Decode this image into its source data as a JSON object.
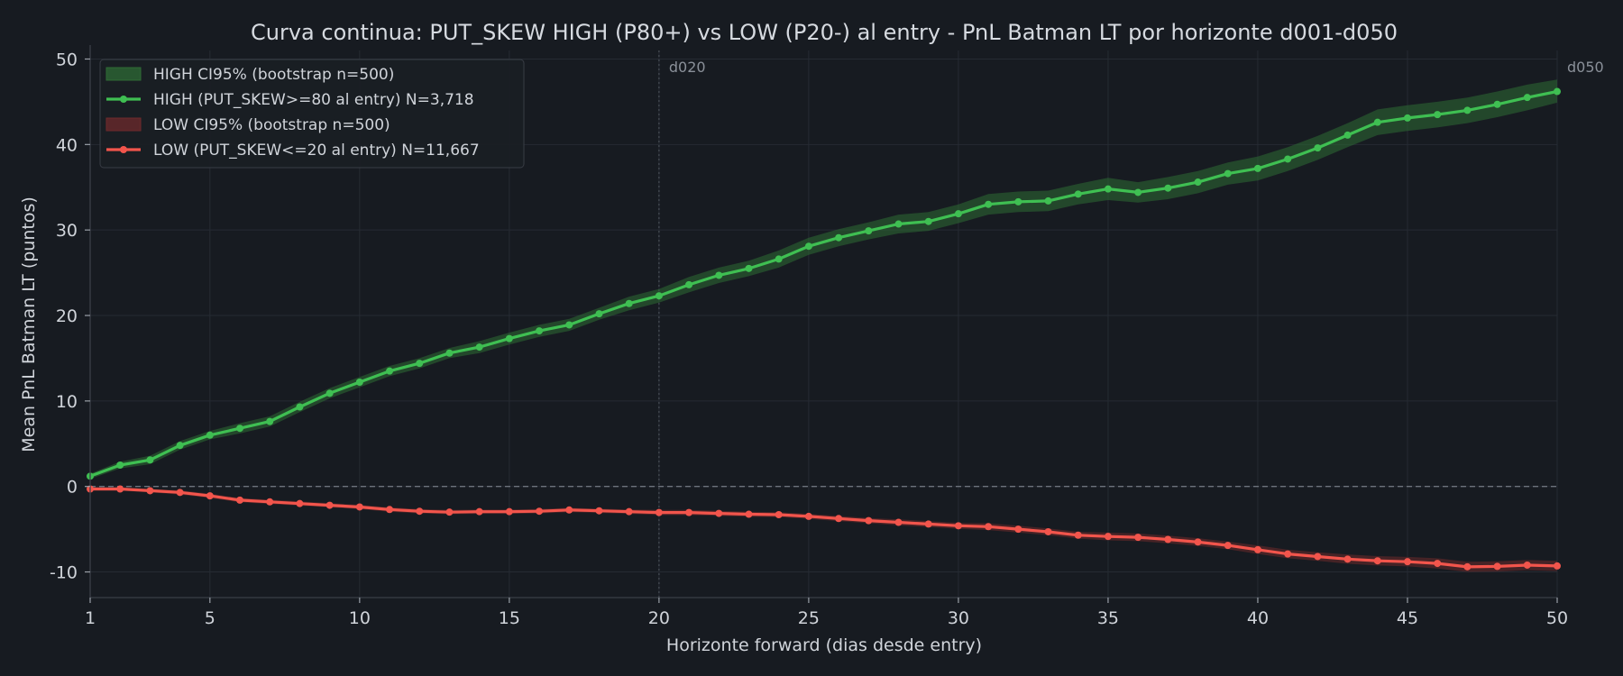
{
  "chart_data": {
    "type": "line",
    "title": "Curva continua: PUT_SKEW HIGH (P80+) vs LOW (P20-) al entry  -  PnL Batman LT por horizonte d001-d050",
    "xlabel": "Horizonte forward (dias desde entry)",
    "ylabel": "Mean PnL Batman LT (puntos)",
    "xlim": [
      1,
      50
    ],
    "ylim": [
      -13,
      51
    ],
    "x_ticks": [
      1,
      5,
      10,
      15,
      20,
      25,
      30,
      35,
      40,
      45,
      50
    ],
    "x_tick_labels": [
      "1",
      "5",
      "10",
      "15",
      "20",
      "25",
      "30",
      "35",
      "40",
      "45",
      "50"
    ],
    "y_ticks": [
      -10,
      0,
      10,
      20,
      30,
      40,
      50
    ],
    "y_tick_labels": [
      "-10",
      "0",
      "10",
      "20",
      "30",
      "40",
      "50"
    ],
    "grid": true,
    "legend_position": "top-left",
    "reference_lines": [
      {
        "axis": "y",
        "value": 0,
        "style": "dashed"
      },
      {
        "axis": "x",
        "value": 20,
        "label": "d020",
        "style": "dotted"
      },
      {
        "axis": "x",
        "value": 50,
        "label": "d050",
        "style": "none"
      }
    ],
    "x": [
      1,
      2,
      3,
      4,
      5,
      6,
      7,
      8,
      9,
      10,
      11,
      12,
      13,
      14,
      15,
      16,
      17,
      18,
      19,
      20,
      21,
      22,
      23,
      24,
      25,
      26,
      27,
      28,
      29,
      30,
      31,
      32,
      33,
      34,
      35,
      36,
      37,
      38,
      39,
      40,
      41,
      42,
      43,
      44,
      45,
      46,
      47,
      48,
      49,
      50
    ],
    "series": [
      {
        "name": "HIGH (PUT_SKEW>=80 al entry)  N=3,718",
        "color": "#3fbf52",
        "ci_label": "HIGH CI95% (bootstrap n=500)",
        "ci_color": "#2e6b35",
        "values": [
          1.2,
          2.5,
          3.1,
          4.8,
          6.0,
          6.8,
          7.6,
          9.3,
          10.9,
          12.2,
          13.5,
          14.4,
          15.6,
          16.3,
          17.3,
          18.2,
          18.9,
          20.2,
          21.4,
          22.3,
          23.6,
          24.7,
          25.5,
          26.6,
          28.1,
          29.1,
          29.9,
          30.7,
          31.0,
          31.9,
          33.0,
          33.3,
          33.4,
          34.2,
          34.8,
          34.4,
          34.9,
          35.6,
          36.6,
          37.2,
          38.3,
          39.6,
          41.1,
          42.6,
          43.1,
          43.5,
          44.0,
          44.7,
          45.5,
          46.2
        ],
        "ci_low": [
          0.9,
          2.1,
          2.6,
          4.3,
          5.5,
          6.2,
          7.0,
          8.7,
          10.3,
          11.6,
          12.9,
          13.8,
          15.0,
          15.6,
          16.6,
          17.5,
          18.2,
          19.5,
          20.6,
          21.5,
          22.7,
          23.8,
          24.6,
          25.6,
          27.1,
          28.1,
          28.9,
          29.6,
          29.9,
          30.8,
          31.8,
          32.1,
          32.2,
          33.0,
          33.5,
          33.2,
          33.6,
          34.3,
          35.3,
          35.8,
          36.9,
          38.2,
          39.7,
          41.1,
          41.6,
          42.0,
          42.5,
          43.2,
          44.0,
          44.9
        ],
        "ci_high": [
          1.5,
          2.9,
          3.6,
          5.3,
          6.5,
          7.4,
          8.2,
          9.9,
          11.5,
          12.8,
          14.1,
          15.0,
          16.2,
          17.0,
          18.0,
          18.9,
          19.6,
          20.9,
          22.2,
          23.1,
          24.5,
          25.6,
          26.4,
          27.6,
          29.1,
          30.1,
          30.9,
          31.8,
          32.1,
          33.0,
          34.2,
          34.5,
          34.6,
          35.4,
          36.1,
          35.6,
          36.2,
          36.9,
          37.9,
          38.6,
          39.7,
          41.0,
          42.5,
          44.1,
          44.6,
          45.0,
          45.5,
          46.2,
          47.0,
          47.6
        ]
      },
      {
        "name": "LOW (PUT_SKEW<=20 al entry)  N=11,667",
        "color": "#f2554c",
        "ci_label": "LOW CI95% (bootstrap n=500)",
        "ci_color": "#6e2a2c",
        "values": [
          -0.3,
          -0.3,
          -0.5,
          -0.7,
          -1.1,
          -1.6,
          -1.8,
          -2.0,
          -2.2,
          -2.4,
          -2.7,
          -2.9,
          -3.0,
          -2.95,
          -2.95,
          -2.9,
          -2.75,
          -2.85,
          -2.95,
          -3.05,
          -3.05,
          -3.15,
          -3.25,
          -3.3,
          -3.5,
          -3.75,
          -4.0,
          -4.2,
          -4.4,
          -4.6,
          -4.7,
          -5.0,
          -5.3,
          -5.7,
          -5.85,
          -5.95,
          -6.2,
          -6.5,
          -6.9,
          -7.4,
          -7.9,
          -8.2,
          -8.5,
          -8.7,
          -8.8,
          -9.0,
          -9.4,
          -9.35,
          -9.2,
          -9.3
        ],
        "ci_low": [
          -0.5,
          -0.5,
          -0.7,
          -0.95,
          -1.35,
          -1.85,
          -2.05,
          -2.25,
          -2.45,
          -2.65,
          -2.95,
          -3.15,
          -3.25,
          -3.2,
          -3.2,
          -3.15,
          -3.0,
          -3.1,
          -3.2,
          -3.35,
          -3.35,
          -3.45,
          -3.55,
          -3.6,
          -3.8,
          -4.05,
          -4.3,
          -4.55,
          -4.75,
          -4.95,
          -5.1,
          -5.4,
          -5.7,
          -6.1,
          -6.3,
          -6.4,
          -6.65,
          -6.95,
          -7.35,
          -7.9,
          -8.4,
          -8.7,
          -9.05,
          -9.25,
          -9.35,
          -9.6,
          -10.0,
          -9.95,
          -9.8,
          -9.9
        ],
        "ci_high": [
          -0.1,
          -0.1,
          -0.3,
          -0.45,
          -0.85,
          -1.35,
          -1.55,
          -1.75,
          -1.95,
          -2.15,
          -2.45,
          -2.65,
          -2.75,
          -2.7,
          -2.7,
          -2.65,
          -2.5,
          -2.6,
          -2.7,
          -2.75,
          -2.75,
          -2.85,
          -2.95,
          -3.0,
          -3.2,
          -3.45,
          -3.7,
          -3.85,
          -4.05,
          -4.25,
          -4.3,
          -4.6,
          -4.9,
          -5.3,
          -5.4,
          -5.5,
          -5.75,
          -6.05,
          -6.45,
          -6.9,
          -7.4,
          -7.7,
          -7.95,
          -8.15,
          -8.25,
          -8.4,
          -8.8,
          -8.75,
          -8.6,
          -8.7
        ]
      }
    ]
  }
}
